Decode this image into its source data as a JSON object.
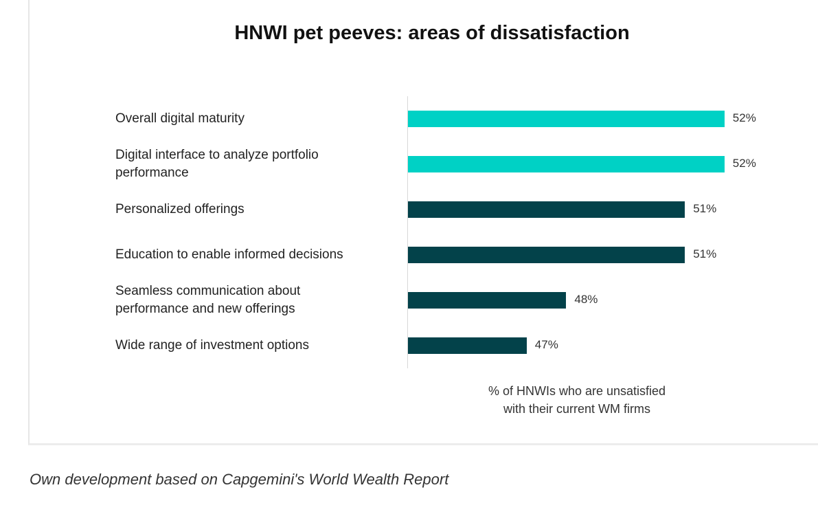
{
  "chart_data": {
    "type": "bar",
    "orientation": "horizontal",
    "title": "HNWI pet peeves: areas of dissatisfaction",
    "categories": [
      "Overall digital maturity",
      "Digital interface to analyze portfolio performance",
      "Personalized offerings",
      "Education to enable informed decisions",
      "Seamless communication about performance and new offerings",
      "Wide range of investment options"
    ],
    "values": [
      52,
      52,
      51,
      51,
      48,
      47
    ],
    "value_labels": [
      "52%",
      "52%",
      "51%",
      "51%",
      "48%",
      "47%"
    ],
    "colors": [
      "#00d1c5",
      "#00d1c5",
      "#03424a",
      "#03424a",
      "#03424a",
      "#03424a"
    ],
    "xlabel": "% of HNWIs who are unsatisfied with their current WM firms",
    "xlabel_lines": [
      "% of HNWIs who are unsatisfied",
      "with their current WM firms"
    ],
    "ylabel": "",
    "xlim": [
      44,
      53
    ],
    "grid": false
  },
  "label_lines": [
    [
      "Overall digital maturity"
    ],
    [
      "Digital interface to analyze portfolio",
      "performance"
    ],
    [
      "Personalized offerings"
    ],
    [
      "Education to enable informed decisions"
    ],
    [
      "Seamless communication about",
      "performance and new offerings"
    ],
    [
      "Wide range of investment options"
    ]
  ],
  "caption": "Own development based on Capgemini's World Wealth Report"
}
